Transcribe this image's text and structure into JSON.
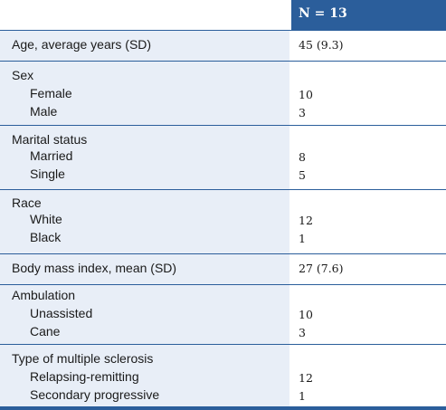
{
  "header": {
    "n_label": "N = 13"
  },
  "age": {
    "label": "Age, average years (SD)",
    "value": "45 (9.3)"
  },
  "sex": {
    "label": "Sex",
    "female_label": "Female",
    "female_value": "10",
    "male_label": "Male",
    "male_value": "3"
  },
  "marital": {
    "label": "Marital status",
    "married_label": "Married",
    "married_value": "8",
    "single_label": "Single",
    "single_value": "5"
  },
  "race": {
    "label": "Race",
    "white_label": "White",
    "white_value": "12",
    "black_label": "Black",
    "black_value": "1"
  },
  "bmi": {
    "label": "Body mass index, mean (SD)",
    "value": "27 (7.6)"
  },
  "ambulation": {
    "label": "Ambulation",
    "unassisted_label": "Unassisted",
    "unassisted_value": "10",
    "cane_label": "Cane",
    "cane_value": "3"
  },
  "ms_type": {
    "label": "Type of multiple sclerosis",
    "relapsing_label": "Relapsing-remitting",
    "relapsing_value": "12",
    "secondary_label": "Secondary progressive",
    "secondary_value": "1"
  },
  "colors": {
    "accent": "#2b5e9b",
    "label_bg": "#e8eef7"
  }
}
